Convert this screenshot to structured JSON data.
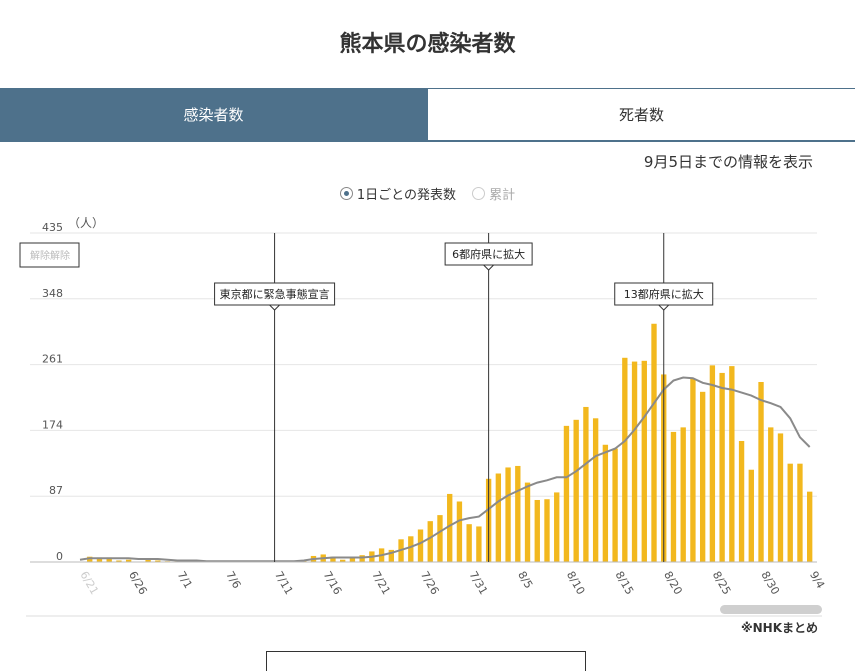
{
  "page": {
    "title": "熊本県の感染者数"
  },
  "tabs": [
    {
      "label": "感染者数",
      "active": true
    },
    {
      "label": "死者数",
      "active": false
    }
  ],
  "as_of": "9月5日までの情報を表示",
  "radios": [
    {
      "label": "1日ごとの発表数",
      "selected": true
    },
    {
      "label": "累計",
      "selected": false
    }
  ],
  "source": "※NHKまとめ",
  "colors": {
    "bar": "#f2b81e",
    "line": "#8a8a8a",
    "tab_active": "#4e718b",
    "grid": "#e6e6e6"
  },
  "chart_data": {
    "type": "bar",
    "unit_label": "（人）",
    "ylim": [
      0,
      435
    ],
    "yticks": [
      0,
      87,
      174,
      261,
      348,
      435
    ],
    "x_start": "6/21",
    "x_tick_labels": [
      "6/21",
      "6/26",
      "7/1",
      "7/6",
      "7/11",
      "7/16",
      "7/21",
      "7/26",
      "7/31",
      "8/5",
      "8/10",
      "8/15",
      "8/20",
      "8/25",
      "8/30",
      "9/4"
    ],
    "series": [
      {
        "name": "",
        "type": "bar",
        "values": [
          0,
          7,
          6,
          6,
          2,
          3,
          0,
          4,
          2,
          1,
          1,
          1,
          1,
          0,
          0,
          0,
          0,
          0,
          0,
          0,
          0,
          0,
          1,
          2,
          8,
          10,
          7,
          3,
          7,
          9,
          14,
          18,
          16,
          30,
          34,
          43,
          54,
          62,
          90,
          80,
          50,
          47,
          110,
          117,
          125,
          127,
          105,
          82,
          83,
          92,
          180,
          188,
          205,
          190,
          155,
          150,
          270,
          265,
          266,
          315,
          248,
          172,
          178,
          242,
          225,
          260,
          250,
          259,
          160,
          122,
          238,
          178,
          170,
          130,
          130,
          93
        ]
      },
      {
        "name": "",
        "type": "line",
        "values": [
          3,
          5,
          5,
          5,
          5,
          5,
          4,
          4,
          4,
          3,
          2,
          2,
          2,
          1,
          1,
          1,
          1,
          1,
          1,
          1,
          1,
          1,
          1,
          2,
          4,
          5,
          6,
          6,
          6,
          6,
          7,
          9,
          12,
          16,
          20,
          25,
          32,
          40,
          48,
          55,
          58,
          60,
          70,
          80,
          88,
          94,
          100,
          105,
          108,
          112,
          112,
          120,
          130,
          140,
          145,
          150,
          160,
          175,
          192,
          210,
          228,
          240,
          244,
          243,
          237,
          234,
          230,
          228,
          224,
          220,
          214,
          210,
          205,
          190,
          165,
          152
        ]
      }
    ],
    "events": [
      {
        "date": "7/11",
        "label": "東京都に緊急事態宣言"
      },
      {
        "date": "8/2",
        "label": "6都府県に拡大"
      },
      {
        "date": "8/20",
        "label": "13都府県に拡大"
      }
    ],
    "clipped_label": "解除解除"
  }
}
